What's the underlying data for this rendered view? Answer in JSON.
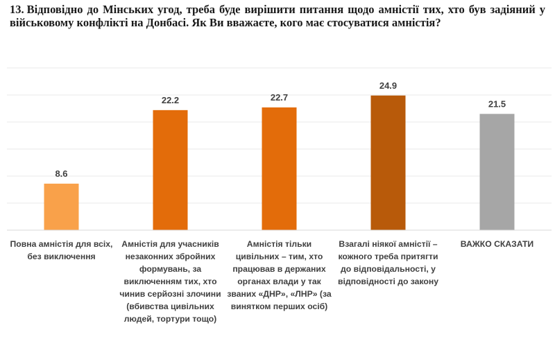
{
  "question": {
    "number": "13.",
    "text": "Відповідно до Мінських угод, треба буде вирішити питання щодо амністії тих, хто був задіяний у військовому конфлікті на Донбасі. Як Ви вважаєте, кого має стосуватися амністія?"
  },
  "chart_data": {
    "type": "bar",
    "categories": [
      "Повна амністія для всіх, без виключення",
      "Амністія для учасників незаконних збройних формувань, за виключенням тих, хто чинив серйозні злочини (вбивства цивільних людей, тортури тощо)",
      "Амністія тільки цивільних – тим, хто працював в держаних органах влади у так званих «ДНР», «ЛНР» (за винятком перших осіб)",
      "Взагалі ніякої амністії – кожного треба притягти до відповідальності, у відповідності до закону",
      "ВАЖКО СКАЗАТИ"
    ],
    "values": [
      8.6,
      22.2,
      22.7,
      24.9,
      21.5
    ],
    "data_labels": [
      "8.6",
      "22.2",
      "22.7",
      "24.9",
      "21.5"
    ],
    "colors": [
      "#f9a14a",
      "#e36c0a",
      "#e36c0a",
      "#b85a0a",
      "#a6a6a6"
    ],
    "ylim": [
      0,
      30
    ],
    "grid": true,
    "gridline_color": "#e8e8e8",
    "legend": "none"
  }
}
